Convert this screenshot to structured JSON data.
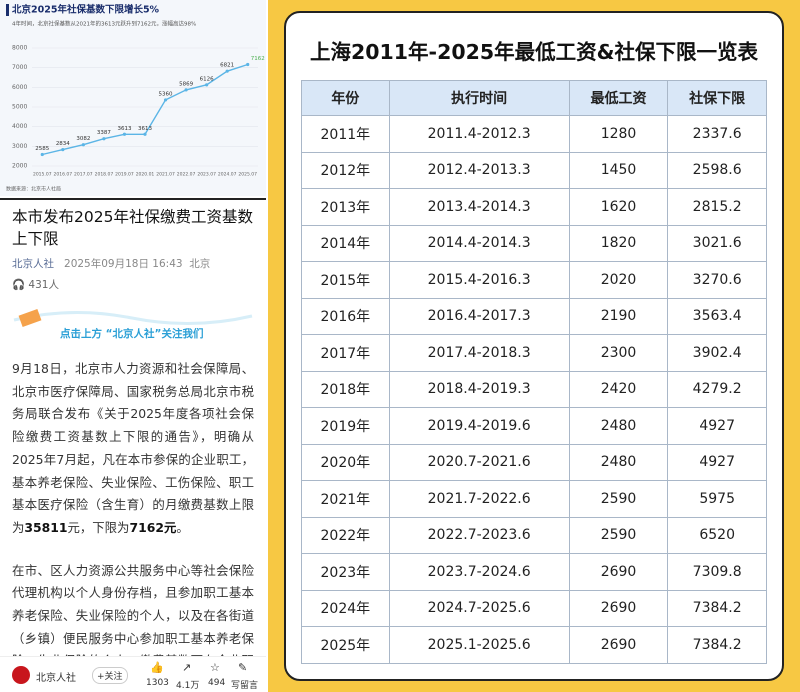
{
  "chart_data": {
    "type": "line",
    "title": "北京2025年社保基数下限增长5%",
    "subtitle": "4年时间，北京社保基数从2021年的3613元跃升到7162元，涨幅高达98%",
    "source": "数据来源：北京市人社局",
    "categories": [
      "2015.07",
      "2016.07",
      "2017.07",
      "2018.07",
      "2019.07",
      "2020.01",
      "2021.07",
      "2022.07",
      "2023.07",
      "2024.07",
      "2025.07"
    ],
    "series": [
      {
        "name": "社保基数下限",
        "color": "#5bb5e6",
        "values": [
          2585,
          2834,
          3082,
          3387,
          3613,
          3613,
          5360,
          5869,
          6126,
          6821,
          7162
        ]
      }
    ],
    "ylim": [
      2000,
      8000
    ],
    "yticks": [
      2000,
      3000,
      4000,
      5000,
      6000,
      7000,
      8000
    ],
    "grid": true
  },
  "article": {
    "title": "本市发布2025年社保缴费工资基数上下限",
    "author": "北京人社",
    "datetime": "2025年09月18日 16:43",
    "location": "北京",
    "listeners": "431人",
    "banner": "点击上方 “北京人社”关注我们",
    "paragraph1": [
      "9月18日，北京市人力资源和社会保障局、北京市医疗保障局、国家税务总局北京市税务局联合发布《关于2025年度各项社会保险缴费工资基数上下限的通告》，明确从2025年7月起，凡在本市参保的企业职工，基本养老保险、失业保险、工伤保险、职工基本医疗保险（含生育）的月缴费基数上限为",
      "35811",
      "元，下限为",
      "7162元",
      "。"
    ],
    "paragraph2": "在市、区人力资源公共服务中心等社会保险代理机构以个人身份存档，且参加职工基本养老保险、失业保险的个人，以及在各街道（乡镇）便民服务中心参加职工基本养老保险、失业保险的个人，缴费基数可在企业职工养老保险缴费基数上下限范围内自愿选择。",
    "footer": {
      "account": "北京人社",
      "follow": "+关注",
      "likes": "1303",
      "shares": "4.1万",
      "favorites": "494",
      "comment": "写留言"
    }
  },
  "table": {
    "title": "上海2011年-2025年最低工资&社保下限一览表",
    "header": [
      "年份",
      "执行时间",
      "最低工资",
      "社保下限"
    ],
    "rows": [
      [
        "2011年",
        "2011.4-2012.3",
        "1280",
        "2337.6"
      ],
      [
        "2012年",
        "2012.4-2013.3",
        "1450",
        "2598.6"
      ],
      [
        "2013年",
        "2013.4-2014.3",
        "1620",
        "2815.2"
      ],
      [
        "2014年",
        "2014.4-2014.3",
        "1820",
        "3021.6"
      ],
      [
        "2015年",
        "2015.4-2016.3",
        "2020",
        "3270.6"
      ],
      [
        "2016年",
        "2016.4-2017.3",
        "2190",
        "3563.4"
      ],
      [
        "2017年",
        "2017.4-2018.3",
        "2300",
        "3902.4"
      ],
      [
        "2018年",
        "2018.4-2019.3",
        "2420",
        "4279.2"
      ],
      [
        "2019年",
        "2019.4-2019.6",
        "2480",
        "4927"
      ],
      [
        "2020年",
        "2020.7-2021.6",
        "2480",
        "4927"
      ],
      [
        "2021年",
        "2021.7-2022.6",
        "2590",
        "5975"
      ],
      [
        "2022年",
        "2022.7-2023.6",
        "2590",
        "6520"
      ],
      [
        "2023年",
        "2023.7-2024.6",
        "2690",
        "7309.8"
      ],
      [
        "2024年",
        "2024.7-2025.6",
        "2690",
        "7384.2"
      ],
      [
        "2025年",
        "2025.1-2025.6",
        "2690",
        "7384.2"
      ]
    ]
  }
}
